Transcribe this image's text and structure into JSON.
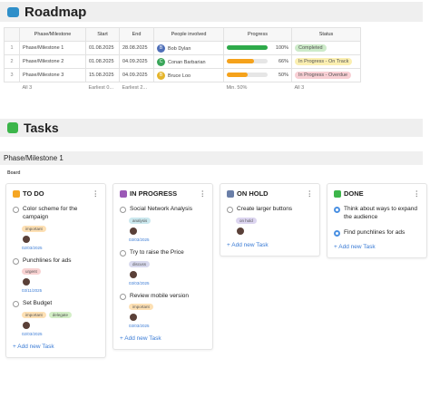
{
  "roadmap": {
    "title": "Roadmap",
    "columns": [
      "Phase/Milestone",
      "Start",
      "End",
      "People involved",
      "Progress",
      "Status"
    ],
    "rows": [
      {
        "num": "1",
        "phase": "Phase/Milestone 1",
        "start": "01.08.2025",
        "end": "28.08.2025",
        "person": {
          "initial": "B",
          "name": "Bob Dylan",
          "color": "#4f6fb8"
        },
        "progress": {
          "value": 100,
          "label": "100%",
          "color": "#2eaa4a"
        },
        "status": {
          "label": "Completed",
          "color": "#cdebc9"
        }
      },
      {
        "num": "2",
        "phase": "Phase/Milestone 2",
        "start": "01.08.2025",
        "end": "04.09.2025",
        "person": {
          "initial": "C",
          "name": "Conan Barbarian",
          "color": "#3aa65a"
        },
        "progress": {
          "value": 66,
          "label": "66%",
          "color": "#f5a21b"
        },
        "status": {
          "label": "In Progress - On Track",
          "color": "#fbefb1"
        }
      },
      {
        "num": "3",
        "phase": "Phase/Milestone 3",
        "start": "15.08.2025",
        "end": "04.09.2025",
        "person": {
          "initial": "B",
          "name": "Bruce Loo",
          "color": "#e5b52c"
        },
        "progress": {
          "value": 50,
          "label": "50%",
          "color": "#f5a21b"
        },
        "status": {
          "label": "In Progress - Overdue",
          "color": "#f8cfd4"
        }
      }
    ],
    "footer": {
      "phase": "All 3",
      "start": "Earliest 0...",
      "end": "Earliest 2...",
      "progress": "Min. 50%",
      "status": "All 3"
    }
  },
  "tasks": {
    "title": "Tasks",
    "section": "Phase/Milestone 1",
    "board_label": "Board",
    "columns": [
      {
        "title": "TO DO",
        "icon_color": "#f5a623",
        "add": "+ Add new Task",
        "cards": [
          {
            "text": "Color scheme for the campaign",
            "done": false,
            "tags": [
              {
                "label": "important",
                "color": "#fde0b4"
              }
            ],
            "date": "02/03/2025"
          },
          {
            "text": "Punchlines for ads",
            "done": false,
            "tags": [
              {
                "label": "urgent",
                "color": "#f8d2d2"
              }
            ],
            "date": "03/11/2025"
          },
          {
            "text": "Set Budget",
            "done": false,
            "tags": [
              {
                "label": "important",
                "color": "#fde0b4"
              },
              {
                "label": "delegate",
                "color": "#d3eec6"
              }
            ],
            "date": "02/03/2025"
          }
        ]
      },
      {
        "title": "IN PROGRESS",
        "icon_color": "#9b59b6",
        "add": "+ Add new Task",
        "cards": [
          {
            "text": "Social Network Analysis",
            "done": false,
            "tags": [
              {
                "label": "analysis",
                "color": "#cbe8ee"
              }
            ],
            "date": "03/03/2025"
          },
          {
            "text": "Try to raise the Price",
            "done": false,
            "tags": [
              {
                "label": "discuss",
                "color": "#d8d9ee"
              }
            ],
            "date": "03/03/2025"
          },
          {
            "text": "Review mobile version",
            "done": false,
            "tags": [
              {
                "label": "important",
                "color": "#fde0b4"
              }
            ],
            "date": "03/03/2025"
          }
        ]
      },
      {
        "title": "ON HOLD",
        "icon_color": "#6a7fa8",
        "add": "+ Add new Task",
        "cards": [
          {
            "text": "Create larger buttons",
            "done": false,
            "tags": [
              {
                "label": "on hold",
                "color": "#dcd5f0"
              }
            ]
          }
        ]
      },
      {
        "title": "DONE",
        "icon_color": "#3cb54a",
        "add": "+ Add new Task",
        "cards": [
          {
            "text": "Think about ways to expand the audience",
            "done": true,
            "tags": []
          },
          {
            "text": "Find punchlines for ads",
            "done": true,
            "tags": []
          }
        ]
      }
    ]
  }
}
